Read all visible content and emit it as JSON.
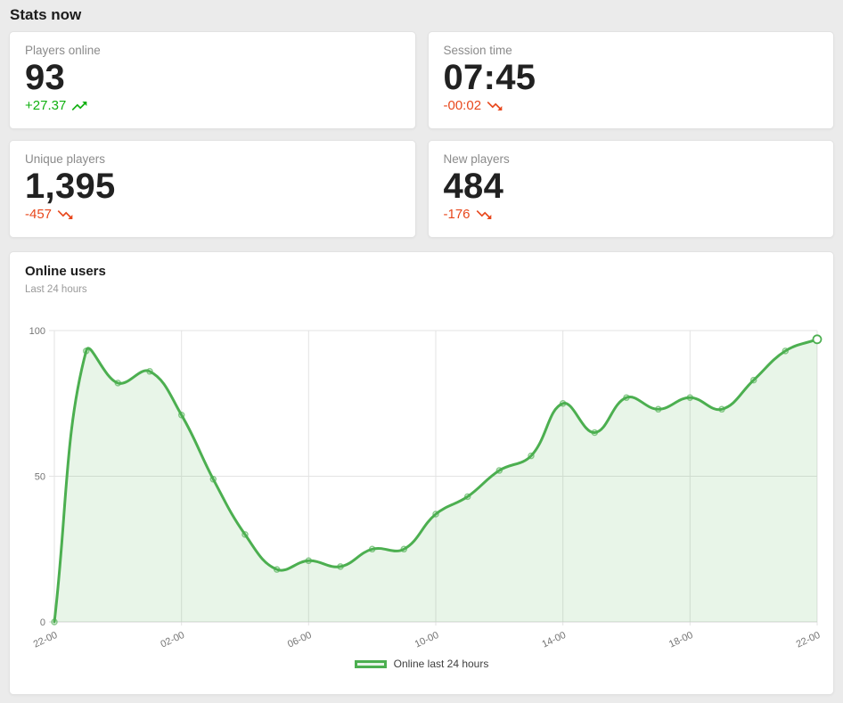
{
  "page": {
    "title": "Stats now",
    "background": "#ebebeb"
  },
  "stat_cards": [
    {
      "label": "Players online",
      "value": "93",
      "delta": "+27.37",
      "trend": "up"
    },
    {
      "label": "Session time",
      "value": "07:45",
      "delta": "-00:02",
      "trend": "down"
    },
    {
      "label": "Unique players",
      "value": "1,395",
      "delta": "-457",
      "trend": "down"
    },
    {
      "label": "New players",
      "value": "484",
      "delta": "-176",
      "trend": "down"
    }
  ],
  "icons": {
    "up": "trending-up-icon",
    "down": "trending-down-icon"
  },
  "colors": {
    "up": "#10b010",
    "down": "#e8481d",
    "line": "#4caf50",
    "area_fill": "rgba(76,175,80,0.13)",
    "point_stroke": "rgba(76,175,80,0.65)",
    "grid": "#e3e3e3",
    "axis": "#d6d6d6",
    "tick_text": "#757575",
    "legend_fill": "#e7f3e8"
  },
  "chart": {
    "title": "Online users",
    "subtitle": "Last 24 hours",
    "legend_label": "Online last 24 hours"
  },
  "chart_data": {
    "type": "area",
    "title": "Online users",
    "subtitle": "Last 24 hours",
    "x": [
      "22:00",
      "23:00",
      "00:00",
      "01:00",
      "02:00",
      "03:00",
      "04:00",
      "05:00",
      "06:00",
      "07:00",
      "08:00",
      "09:00",
      "10:00",
      "11:00",
      "12:00",
      "13:00",
      "14:00",
      "15:00",
      "16:00",
      "17:00",
      "18:00",
      "19:00",
      "20:00",
      "21:00",
      "22:00"
    ],
    "values": [
      0,
      93,
      82,
      86,
      71,
      49,
      30,
      18,
      21,
      19,
      25,
      25,
      37,
      43,
      52,
      57,
      75,
      65,
      77,
      73,
      77,
      73,
      83,
      93,
      97
    ],
    "series_name": "Online last 24 hours",
    "xtick_interval": 4,
    "xtick_labels": [
      "22-00",
      "02-00",
      "06-00",
      "10-00",
      "14-00",
      "18-00",
      "22-00"
    ],
    "yticks": [
      0,
      50,
      100
    ],
    "ylim": [
      0,
      100
    ],
    "grid": true,
    "legend_position": "bottom",
    "smoothing": 0.4
  }
}
